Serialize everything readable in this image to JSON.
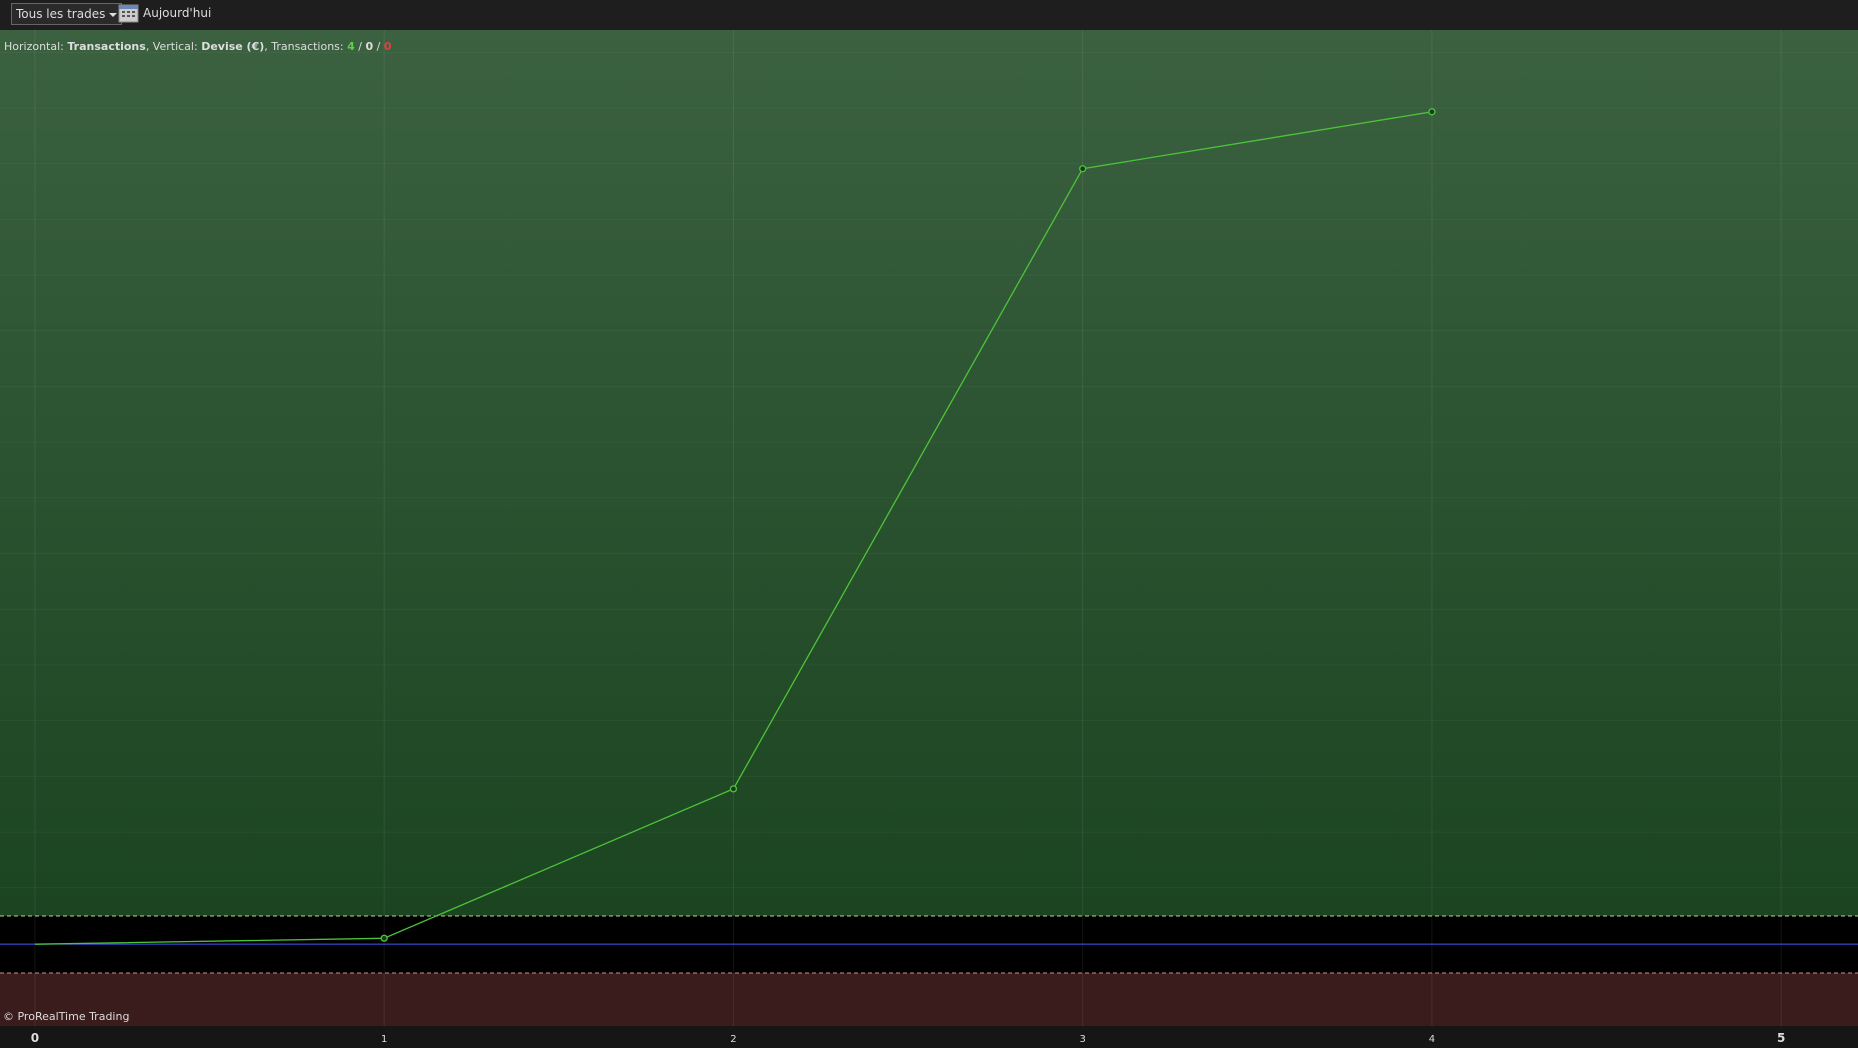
{
  "toolbar": {
    "filter": "Tous les trades",
    "date": "Aujourd'hui"
  },
  "chart_data": {
    "type": "line",
    "caption": [
      "Horizontal: ",
      "Transactions",
      ", Vertical: ",
      "Devise (€)",
      ", Transactions: ",
      4,
      " / ",
      0,
      " / ",
      0
    ],
    "x": [
      0,
      1,
      2,
      3,
      4
    ],
    "values": [
      0,
      5,
      131,
      654,
      702
    ],
    "color": "#4cc43a",
    "xlim": [
      -0.1,
      5.22
    ],
    "ylim": [
      -69,
      771
    ],
    "xticks": [
      0,
      1,
      2,
      3,
      4,
      5
    ],
    "grid": true,
    "footer": "© ProRealTime Trading"
  }
}
